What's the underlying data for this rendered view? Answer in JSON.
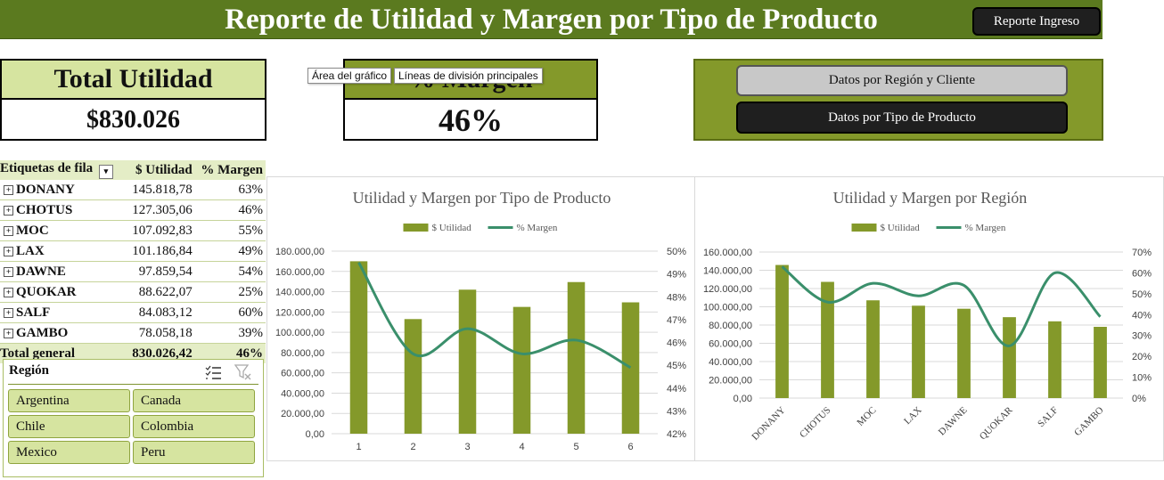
{
  "header": {
    "title": "Reporte de Utilidad y Margen por Tipo de Producto",
    "report_button": "Reporte Ingreso"
  },
  "kpis": {
    "total_utilidad_label": "Total Utilidad",
    "total_utilidad_value": "$830.026",
    "margen_label": "% Margen",
    "margen_value": "46%"
  },
  "tooltips": {
    "chart_area": "Área del gráfico",
    "gridlines": "Líneas de división principales"
  },
  "nav": {
    "region_button": "Datos por Región y Cliente",
    "product_button": "Datos por Tipo de Producto"
  },
  "pivot": {
    "headers": [
      "Etiquetas de fila",
      "$ Utilidad",
      "% Margen"
    ],
    "rows": [
      {
        "label": "DONANY",
        "utilidad": "145.818,78",
        "margen": "63%"
      },
      {
        "label": "CHOTUS",
        "utilidad": "127.305,06",
        "margen": "46%"
      },
      {
        "label": "MOC",
        "utilidad": "107.092,83",
        "margen": "55%"
      },
      {
        "label": "LAX",
        "utilidad": "101.186,84",
        "margen": "49%"
      },
      {
        "label": "DAWNE",
        "utilidad": "97.859,54",
        "margen": "54%"
      },
      {
        "label": "QUOKAR",
        "utilidad": "88.622,07",
        "margen": "25%"
      },
      {
        "label": "SALF",
        "utilidad": "84.083,12",
        "margen": "60%"
      },
      {
        "label": "GAMBO",
        "utilidad": "78.058,18",
        "margen": "39%"
      }
    ],
    "total": {
      "label": "Total general",
      "utilidad": "830.026,42",
      "margen": "46%"
    }
  },
  "slicer": {
    "title": "Región",
    "items": [
      "Argentina",
      "Canada",
      "Chile",
      "Colombia",
      "Mexico",
      "Peru"
    ]
  },
  "chart_data": [
    {
      "type": "bar",
      "title": "Utilidad y Margen por Tipo de Producto",
      "categories": [
        "1",
        "2",
        "3",
        "4",
        "5",
        "6"
      ],
      "series": [
        {
          "name": "$ Utilidad",
          "type": "bar",
          "axis": "left",
          "color": "#84992a",
          "values": [
            170000,
            113000,
            142000,
            125000,
            149500,
            129500
          ]
        },
        {
          "name": "% Margen",
          "type": "line",
          "axis": "right",
          "color": "#3a8f6b",
          "values": [
            49.5,
            45.5,
            46.6,
            45.5,
            46.1,
            44.9
          ]
        }
      ],
      "y_left": {
        "min": 0,
        "max": 180000,
        "step": 20000,
        "ticks": [
          "0,00",
          "20.000,00",
          "40.000,00",
          "60.000,00",
          "80.000,00",
          "100.000,00",
          "120.000,00",
          "140.000,00",
          "160.000,00",
          "180.000,00"
        ]
      },
      "y_right": {
        "min": 42,
        "max": 50,
        "step": 1,
        "ticks": [
          "42%",
          "43%",
          "44%",
          "45%",
          "46%",
          "47%",
          "48%",
          "49%",
          "50%"
        ]
      },
      "legend": "top",
      "grid": true
    },
    {
      "type": "bar",
      "title": "Utilidad y Margen por Región",
      "categories": [
        "DONANY",
        "CHOTUS",
        "MOC",
        "LAX",
        "DAWNE",
        "QUOKAR",
        "SALF",
        "GAMBO"
      ],
      "series": [
        {
          "name": "$ Utilidad",
          "type": "bar",
          "axis": "left",
          "color": "#84992a",
          "values": [
            145818.78,
            127305.06,
            107092.83,
            101186.84,
            97859.54,
            88622.07,
            84083.12,
            78058.18
          ]
        },
        {
          "name": "% Margen",
          "type": "line",
          "axis": "right",
          "color": "#3a8f6b",
          "values": [
            63,
            46,
            55,
            49,
            54,
            25,
            60,
            39
          ]
        }
      ],
      "y_left": {
        "min": 0,
        "max": 160000,
        "step": 20000,
        "ticks": [
          "0,00",
          "20.000,00",
          "40.000,00",
          "60.000,00",
          "80.000,00",
          "100.000,00",
          "120.000,00",
          "140.000,00",
          "160.000,00"
        ]
      },
      "y_right": {
        "min": 0,
        "max": 70,
        "step": 10,
        "ticks": [
          "0%",
          "10%",
          "20%",
          "30%",
          "40%",
          "50%",
          "60%",
          "70%"
        ]
      },
      "legend": "top",
      "grid": true
    }
  ]
}
